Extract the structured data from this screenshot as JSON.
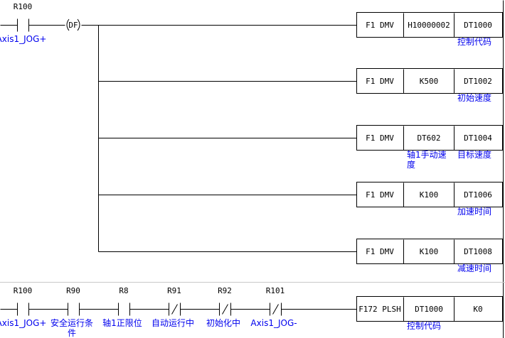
{
  "rung1": {
    "contact": {
      "address": "R100",
      "comment": "Axis1_JOG+",
      "type": "NO"
    },
    "df_label": "DF",
    "instructions": [
      {
        "op": "F1 DMV",
        "src": "H10000002",
        "dst": "DT1000",
        "src_comment": "",
        "dst_comment": "控制代码"
      },
      {
        "op": "F1 DMV",
        "src": "K500",
        "dst": "DT1002",
        "src_comment": "",
        "dst_comment": "初始速度"
      },
      {
        "op": "F1 DMV",
        "src": "DT602",
        "dst": "DT1004",
        "src_comment": "轴1手动速|度",
        "dst_comment": "目标速度"
      },
      {
        "op": "F1 DMV",
        "src": "K100",
        "dst": "DT1006",
        "src_comment": "",
        "dst_comment": "加速时间"
      },
      {
        "op": "F1 DMV",
        "src": "K100",
        "dst": "DT1008",
        "src_comment": "",
        "dst_comment": "减速时间"
      }
    ]
  },
  "rung2": {
    "contacts": [
      {
        "address": "R100",
        "comment": "Axis1_JOG+",
        "type": "NO"
      },
      {
        "address": "R90",
        "comment": "安全运行条|件",
        "type": "NO"
      },
      {
        "address": "R8",
        "comment": "轴1正限位",
        "type": "NO"
      },
      {
        "address": "R91",
        "comment": "自动运行中",
        "type": "NC"
      },
      {
        "address": "R92",
        "comment": "初始化中",
        "type": "NC"
      },
      {
        "address": "R101",
        "comment": "Axis1_JOG-",
        "type": "NC"
      }
    ],
    "instruction": {
      "op": "F172 PLSH",
      "src": "DT1000",
      "dst": "K0",
      "src_comment": "控制代码",
      "dst_comment": ""
    }
  },
  "colors": {
    "line": "#000000",
    "comment": "#0000ee",
    "separator": "#c8c8c8"
  }
}
